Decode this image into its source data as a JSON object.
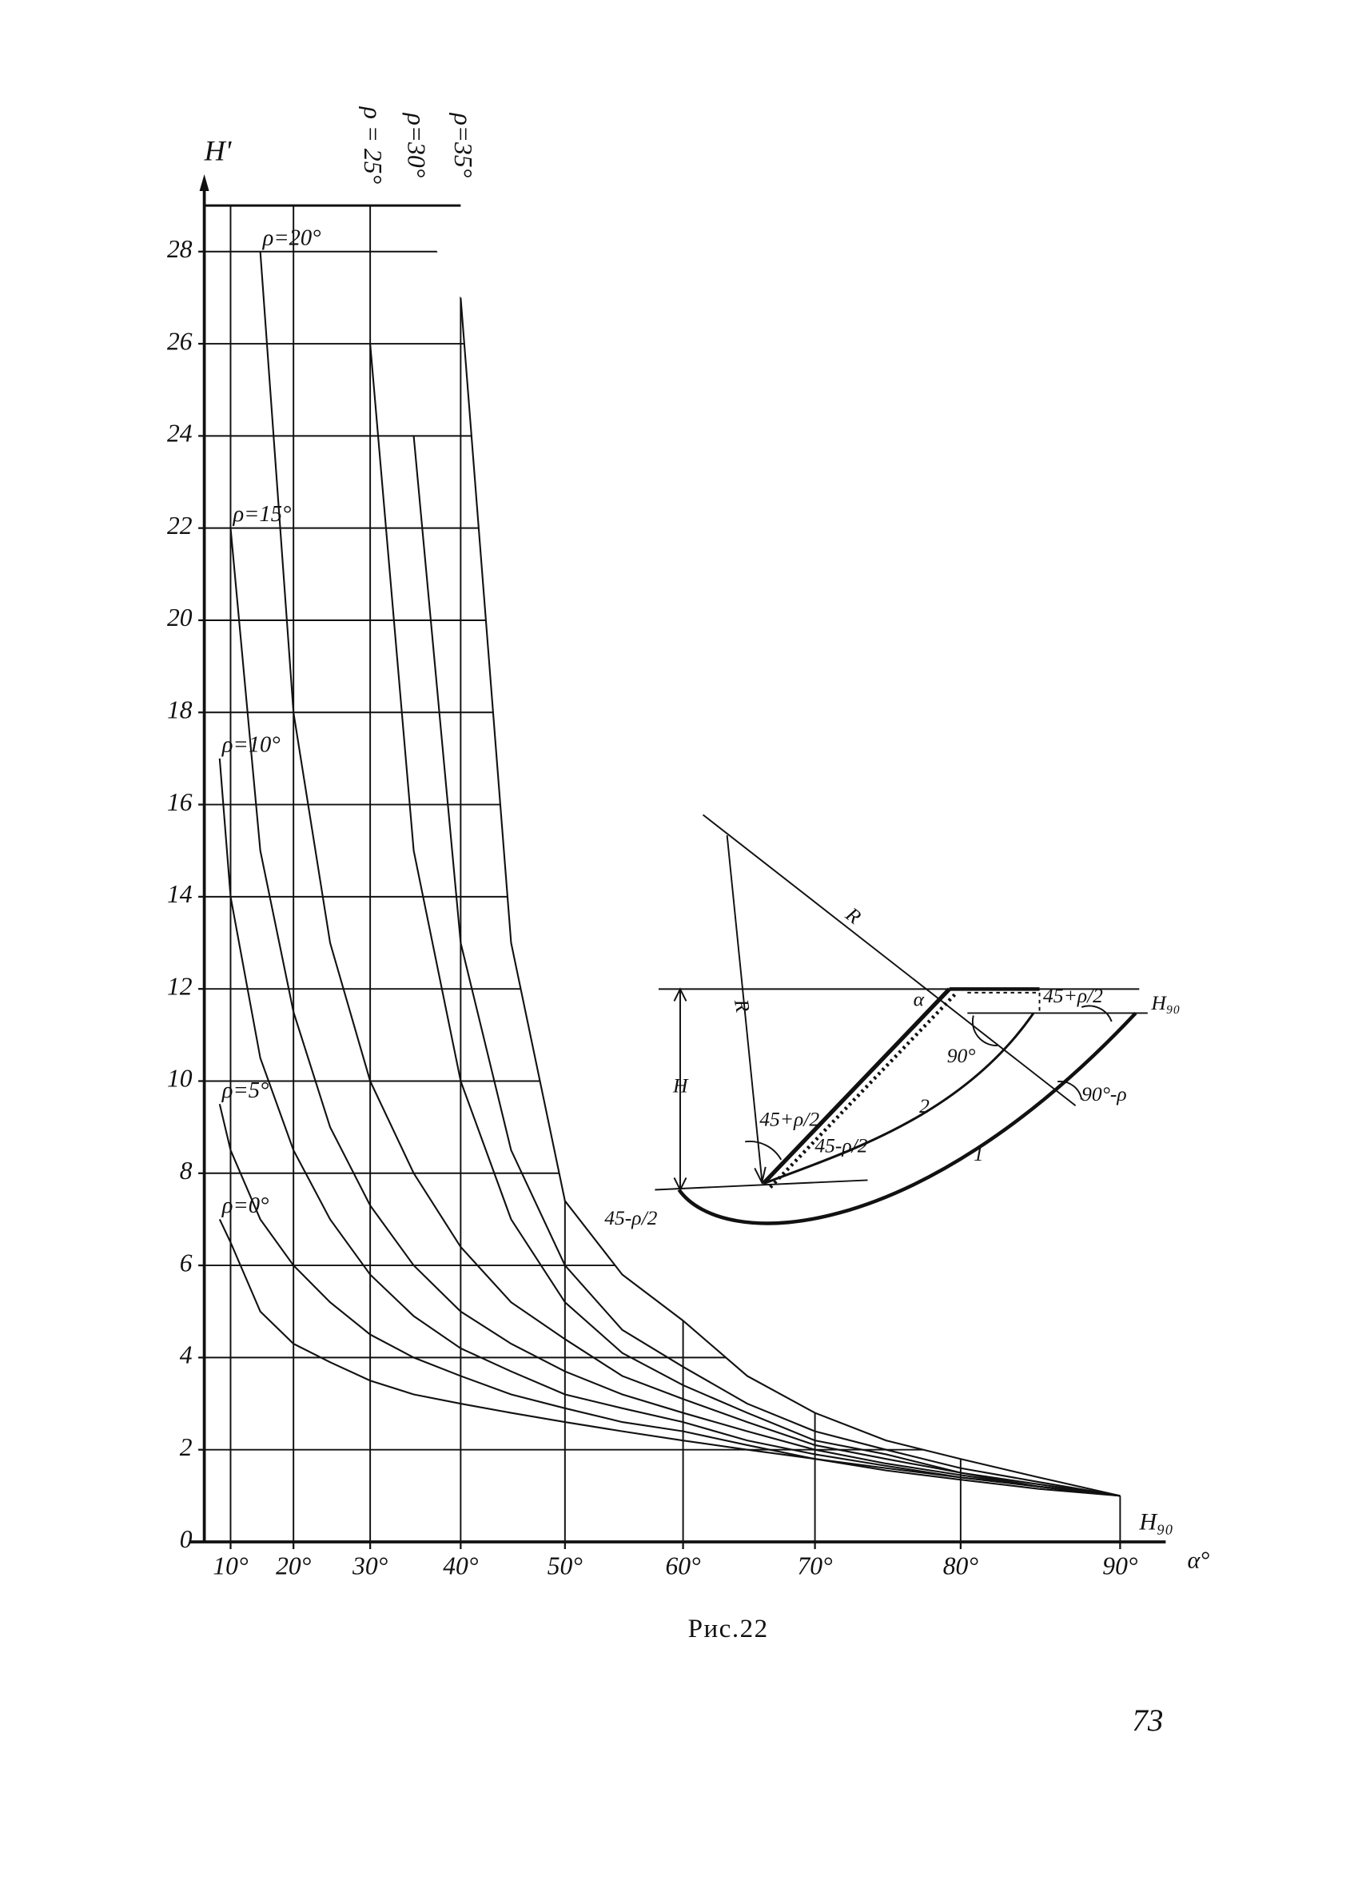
{
  "chart_data": {
    "type": "line",
    "ylabel": "H'",
    "xlabel": "α°",
    "annotation": "H₉₀",
    "color": "#111111",
    "grid": true,
    "xlim": [
      5,
      92
    ],
    "ylim": [
      0,
      29
    ],
    "xticks": [
      {
        "value": 10,
        "label": "10°"
      },
      {
        "value": 20,
        "label": "20°"
      },
      {
        "value": 30,
        "label": "30°"
      },
      {
        "value": 40,
        "label": "40°"
      },
      {
        "value": 50,
        "label": "50°"
      },
      {
        "value": 60,
        "label": "60°"
      },
      {
        "value": 70,
        "label": "70°"
      },
      {
        "value": 80,
        "label": "80°"
      },
      {
        "value": 90,
        "label": "90°"
      }
    ],
    "yticks": [
      0,
      2,
      4,
      6,
      8,
      10,
      12,
      14,
      16,
      18,
      20,
      22,
      24,
      26,
      28
    ],
    "x": [
      8,
      10,
      15,
      20,
      25,
      30,
      35,
      40,
      45,
      50,
      55,
      60,
      65,
      70,
      75,
      80,
      85,
      90
    ],
    "series": [
      {
        "name": "ρ=0°",
        "values": [
          7,
          6.5,
          5,
          4.3,
          3.9,
          3.5,
          3.2,
          3.0,
          2.8,
          2.6,
          2.4,
          2.2,
          2.0,
          1.8,
          1.55,
          1.35,
          1.15,
          1
        ]
      },
      {
        "name": "ρ=5°",
        "values": [
          9.5,
          8.5,
          7,
          6,
          5.2,
          4.5,
          4,
          3.6,
          3.2,
          2.9,
          2.6,
          2.4,
          2.1,
          1.8,
          1.6,
          1.4,
          1.2,
          1
        ]
      },
      {
        "name": "ρ=10°",
        "values": [
          17,
          14,
          10.5,
          8.5,
          7,
          5.8,
          4.9,
          4.2,
          3.7,
          3.2,
          2.9,
          2.6,
          2.2,
          1.9,
          1.65,
          1.4,
          1.2,
          1
        ]
      },
      {
        "name": "ρ=15°",
        "values": [
          null,
          22,
          15,
          11.5,
          9,
          7.3,
          6,
          5,
          4.3,
          3.7,
          3.2,
          2.8,
          2.4,
          2.0,
          1.7,
          1.45,
          1.2,
          1
        ]
      },
      {
        "name": "ρ=20°",
        "values": [
          null,
          null,
          28,
          18,
          13,
          10,
          8,
          6.4,
          5.2,
          4.4,
          3.6,
          3.1,
          2.6,
          2.1,
          1.8,
          1.5,
          1.2,
          1
        ]
      },
      {
        "name": "ρ = 25°",
        "values": [
          null,
          null,
          null,
          null,
          null,
          26,
          15,
          10,
          7,
          5.2,
          4.1,
          3.4,
          2.8,
          2.2,
          1.9,
          1.5,
          1.25,
          1
        ]
      },
      {
        "name": "ρ=30°",
        "values": [
          null,
          null,
          null,
          null,
          null,
          null,
          24,
          13,
          8.5,
          6.0,
          4.6,
          3.8,
          3.0,
          2.4,
          2.0,
          1.6,
          1.3,
          1
        ]
      },
      {
        "name": "ρ=35°",
        "values": [
          null,
          null,
          null,
          null,
          null,
          null,
          null,
          27,
          13,
          7.4,
          5.8,
          4.8,
          3.6,
          2.8,
          2.2,
          1.8,
          1.4,
          1
        ]
      }
    ]
  },
  "diagram": {
    "labels": [
      "R",
      "R",
      "α",
      "H",
      "H₉₀",
      "45+ρ/2",
      "90°",
      "90°-ρ",
      "2",
      "1",
      "45+ρ/2",
      "45-ρ/2",
      "45-ρ/2"
    ]
  },
  "caption": "Рис.22",
  "page_number": "73"
}
